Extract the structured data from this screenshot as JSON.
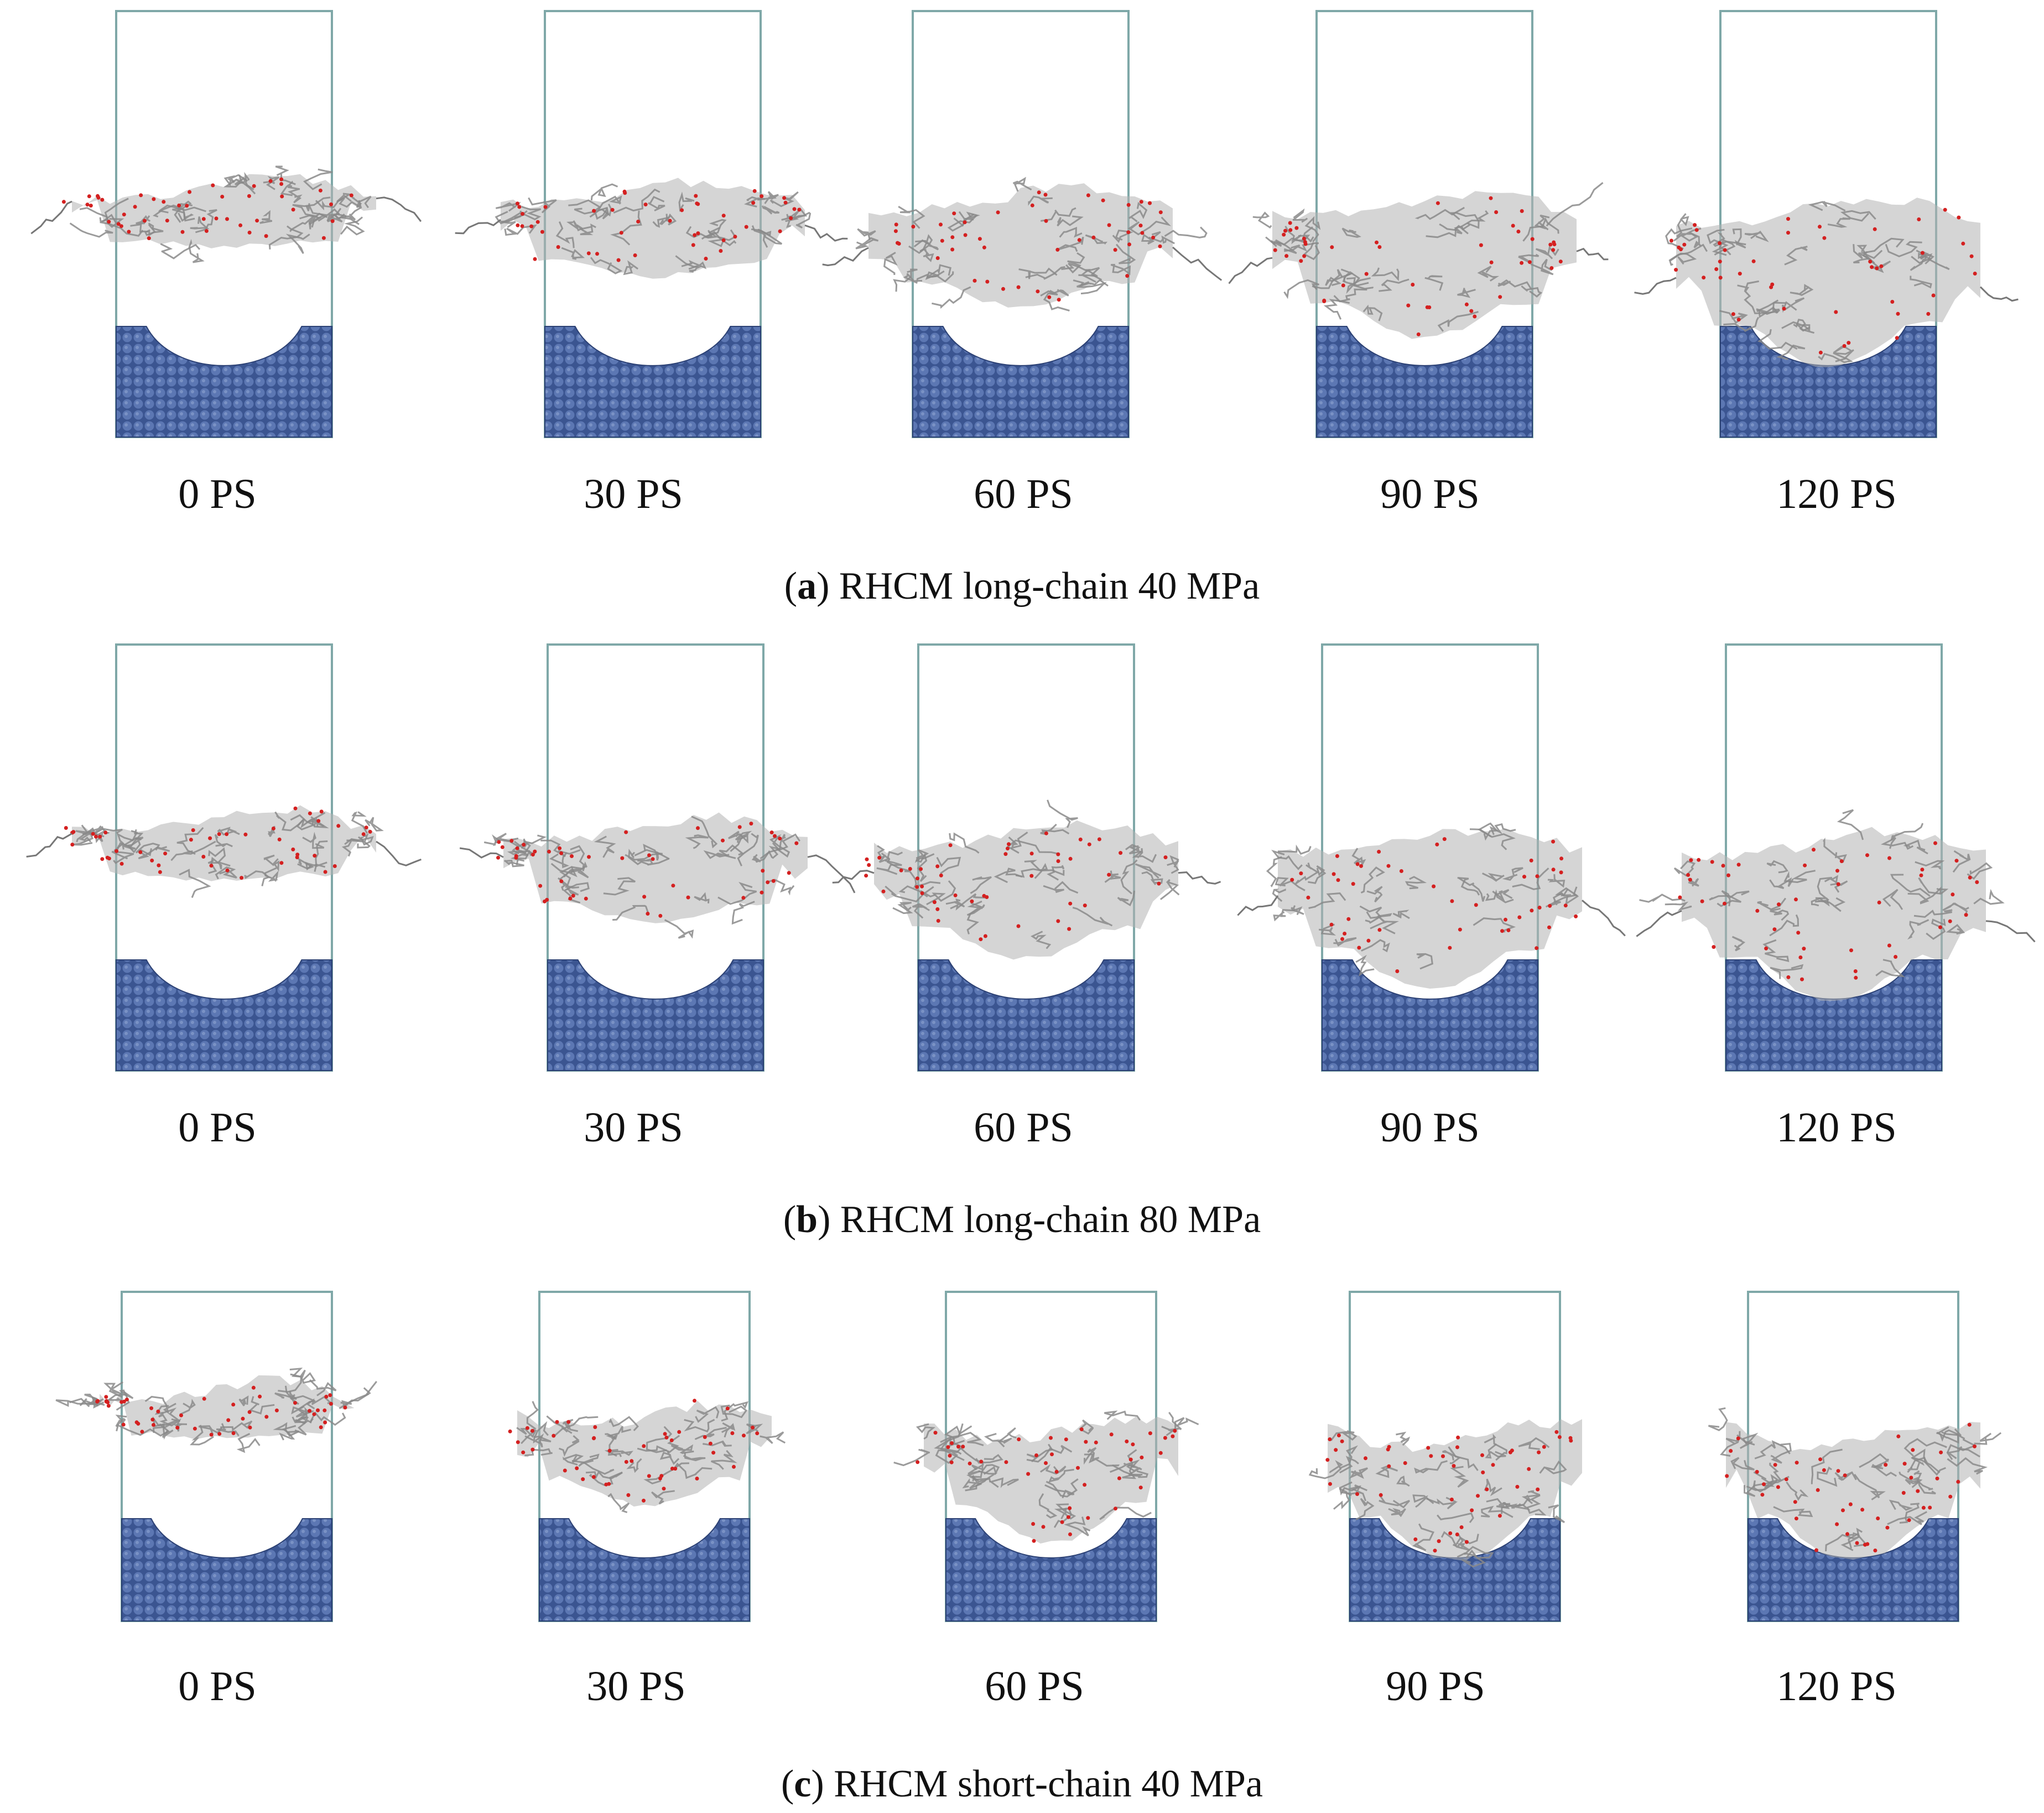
{
  "figure": {
    "panels": [
      {
        "letter": "a",
        "caption": "RHCM long-chain 40 MPa",
        "frames": [
          "0 PS",
          "30 PS",
          "60 PS",
          "90 PS",
          "120 PS"
        ],
        "progress": [
          0.0,
          0.25,
          0.5,
          0.75,
          1.0
        ]
      },
      {
        "letter": "b",
        "caption": "RHCM long-chain 80 MPa",
        "frames": [
          "0 PS",
          "30 PS",
          "60 PS",
          "90 PS",
          "120 PS"
        ],
        "progress": [
          0.0,
          0.35,
          0.65,
          0.9,
          1.0
        ]
      },
      {
        "letter": "c",
        "caption": "RHCM short-chain 40 MPa",
        "frames": [
          "0 PS",
          "30 PS",
          "60 PS",
          "90 PS",
          "120 PS"
        ],
        "progress": [
          0.0,
          0.55,
          0.85,
          1.0,
          1.0
        ]
      }
    ],
    "colors": {
      "substrate": "#3b5591",
      "substrate_atom": "#5c77b3",
      "box": "#7fa8a8",
      "polymer": "#8a8a8a",
      "oxygen": "#d42020",
      "background": "#ffffff"
    }
  }
}
